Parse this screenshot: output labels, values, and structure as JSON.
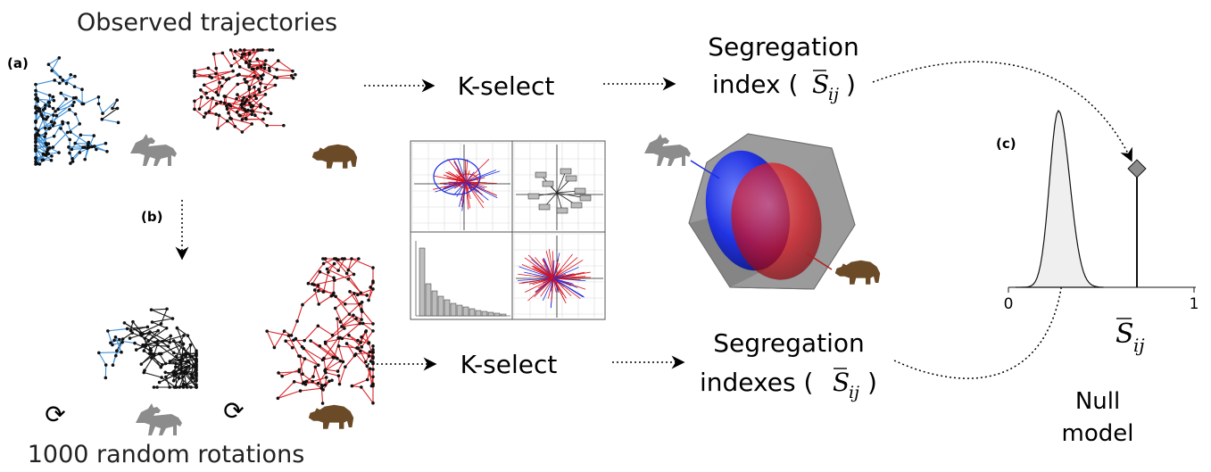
{
  "diagram": {
    "title_observed": "Observed trajectories",
    "title_random": "1000 random rotations",
    "panel_labels": {
      "a": "(a)",
      "b": "(b)",
      "c": "(c)"
    },
    "kselect_top": "K-select",
    "kselect_bottom": "K-select",
    "segregation_top_line1": "Segregation",
    "segregation_top_line2": "index (",
    "segregation_bottom_line1": "Segregation",
    "segregation_bottom_line2": "indexes (",
    "s_symbol": "S",
    "s_subscript": "ij",
    "close_paren": ")",
    "null_line1": "Null",
    "null_line2": "model",
    "axis_zero": "0",
    "axis_one": "1",
    "rotate_symbol": "⟳",
    "colors": {
      "wolf_track": "#3d8fd6",
      "bear_track": "#d7262b",
      "wolf_icon": "#8c8c8c",
      "bear_icon": "#6b4a27",
      "hull": "#8a8a8a",
      "wolf_niche": "#1a2ee0",
      "bear_niche": "#d8101a",
      "density_fill": "#efefef"
    },
    "icons": [
      "wolf-icon",
      "bear-icon",
      "rotate-icon"
    ]
  }
}
